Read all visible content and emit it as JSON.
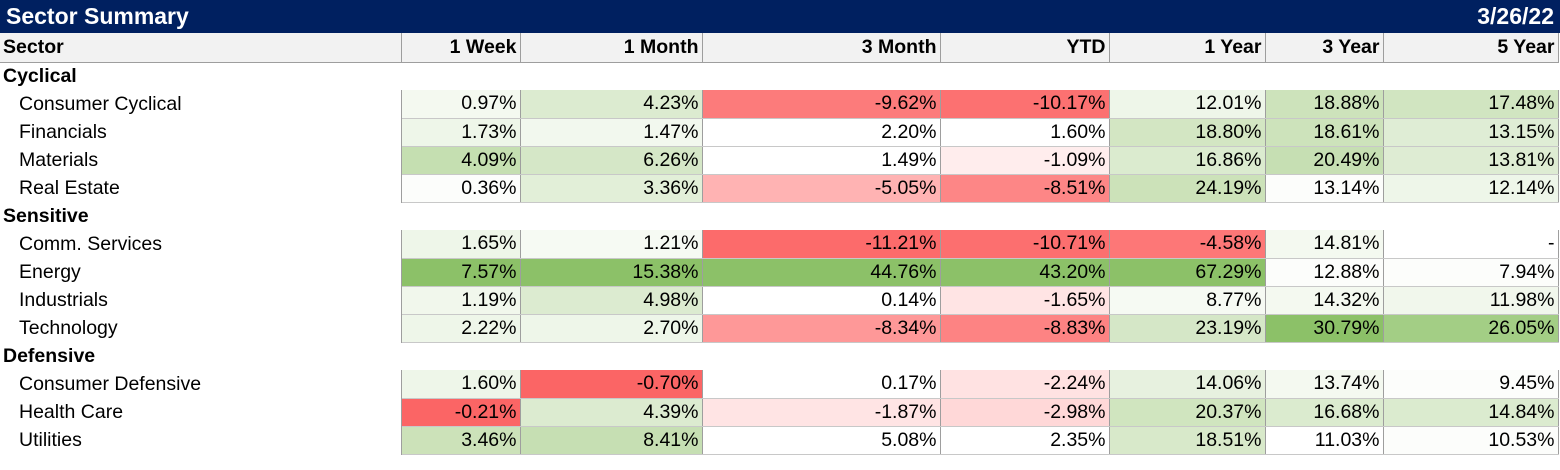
{
  "title": "Sector Summary",
  "date": "3/26/22",
  "columns": [
    "Sector",
    "1 Week",
    "1 Month",
    "3 Month",
    "YTD",
    "1 Year",
    "3 Year",
    "5 Year"
  ],
  "groups": [
    {
      "name": "Cyclical",
      "rows": [
        {
          "sector": "Consumer Cyclical",
          "values": [
            "0.97%",
            "4.23%",
            "-9.62%",
            "-10.17%",
            "12.01%",
            "18.88%",
            "17.48%"
          ],
          "colors": [
            "#f4f9f0",
            "#dcebd0",
            "#fc7b7b",
            "#fc7171",
            "#eef6e9",
            "#cde3bb",
            "#d1e5c1"
          ]
        },
        {
          "sector": "Financials",
          "values": [
            "1.73%",
            "1.47%",
            "2.20%",
            "1.60%",
            "18.80%",
            "18.61%",
            "13.15%"
          ],
          "colors": [
            "#eef6e9",
            "#f2f8ee",
            "#ffffff",
            "#ffffff",
            "#d3e6c3",
            "#cde3bb",
            "#dfedd5"
          ]
        },
        {
          "sector": "Materials",
          "values": [
            "4.09%",
            "6.26%",
            "1.49%",
            "-1.09%",
            "16.86%",
            "20.49%",
            "13.81%"
          ],
          "colors": [
            "#c5dfb1",
            "#d5e7c7",
            "#ffffff",
            "#ffeded",
            "#dbebcf",
            "#c6dfb3",
            "#deecd3"
          ]
        },
        {
          "sector": "Real Estate",
          "values": [
            "0.36%",
            "3.36%",
            "-5.05%",
            "-8.51%",
            "24.19%",
            "13.14%",
            "12.14%"
          ],
          "colors": [
            "#fcfdfb",
            "#e2efd8",
            "#ffb3b3",
            "#fd8686",
            "#cce2b9",
            "#fcfdfb",
            "#eef6e9"
          ]
        }
      ]
    },
    {
      "name": "Sensitive",
      "rows": [
        {
          "sector": "Comm. Services",
          "values": [
            "1.65%",
            "1.21%",
            "-11.21%",
            "-10.71%",
            "-4.58%",
            "14.81%",
            "-"
          ],
          "colors": [
            "#eef6e9",
            "#f6faf3",
            "#fc6b6b",
            "#fc6f6f",
            "#fd7777",
            "#f4f9f0",
            "#ffffff"
          ]
        },
        {
          "sector": "Energy",
          "values": [
            "7.57%",
            "15.38%",
            "44.76%",
            "43.20%",
            "67.29%",
            "12.88%",
            "7.94%"
          ],
          "colors": [
            "#8cc168",
            "#8cc168",
            "#8cc168",
            "#8cc168",
            "#8cc168",
            "#fcfdfb",
            "#fcfdfb"
          ]
        },
        {
          "sector": "Industrials",
          "values": [
            "1.19%",
            "4.98%",
            "0.14%",
            "-1.65%",
            "8.77%",
            "14.32%",
            "11.98%"
          ],
          "colors": [
            "#f1f7ec",
            "#dcebd0",
            "#ffffff",
            "#ffe4e4",
            "#f6faf3",
            "#f4f9f0",
            "#f1f7ec"
          ]
        },
        {
          "sector": "Technology",
          "values": [
            "2.22%",
            "2.70%",
            "-8.34%",
            "-8.83%",
            "23.19%",
            "30.79%",
            "26.05%"
          ],
          "colors": [
            "#eef6e9",
            "#eef6e9",
            "#fe9898",
            "#fd8383",
            "#d5e7c7",
            "#8cc168",
            "#a3ce85"
          ]
        }
      ]
    },
    {
      "name": "Defensive",
      "rows": [
        {
          "sector": "Consumer Defensive",
          "values": [
            "1.60%",
            "-0.70%",
            "0.17%",
            "-2.24%",
            "14.06%",
            "13.74%",
            "9.45%"
          ],
          "colors": [
            "#eef6e9",
            "#fb6565",
            "#ffffff",
            "#ffe2e2",
            "#e7f1df",
            "#f4f9f0",
            "#fcfdfb"
          ]
        },
        {
          "sector": "Health Care",
          "values": [
            "-0.21%",
            "4.39%",
            "-1.87%",
            "-2.98%",
            "20.37%",
            "16.68%",
            "14.84%"
          ],
          "colors": [
            "#fb6565",
            "#dcebd0",
            "#ffe4e4",
            "#ffd8d8",
            "#d0e5bf",
            "#dbebcf",
            "#dbebcf"
          ]
        },
        {
          "sector": "Utilities",
          "values": [
            "3.46%",
            "8.41%",
            "5.08%",
            "2.35%",
            "18.51%",
            "11.03%",
            "10.53%"
          ],
          "colors": [
            "#cce2b9",
            "#c6dfb3",
            "#ffffff",
            "#ffffff",
            "#d8e9ca",
            "#ffffff",
            "#fcfdfb"
          ]
        }
      ]
    }
  ]
}
